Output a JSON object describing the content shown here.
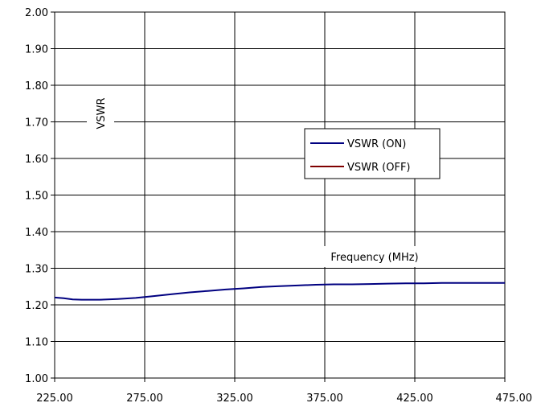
{
  "chart_data": {
    "type": "line",
    "title": "",
    "xlabel": "Frequency (MHz)",
    "ylabel": "VSWR",
    "xlim": [
      225,
      475
    ],
    "ylim": [
      1.0,
      2.0
    ],
    "x_ticks": [
      "225.00",
      "275.00",
      "325.00",
      "375.00",
      "425.00",
      "475.00"
    ],
    "y_ticks": [
      "1.00",
      "1.10",
      "1.20",
      "1.30",
      "1.40",
      "1.50",
      "1.60",
      "1.70",
      "1.80",
      "1.90",
      "2.00"
    ],
    "grid": true,
    "legend_position": "center-right",
    "series": [
      {
        "name": "VSWR (ON)",
        "color": "#000080",
        "x": [
          225,
          230,
          235,
          240,
          250,
          260,
          270,
          280,
          290,
          300,
          310,
          320,
          330,
          340,
          350,
          360,
          370,
          380,
          390,
          400,
          410,
          420,
          430,
          440,
          450,
          460,
          470,
          475
        ],
        "y": [
          1.22,
          1.218,
          1.215,
          1.214,
          1.214,
          1.216,
          1.219,
          1.224,
          1.229,
          1.234,
          1.238,
          1.242,
          1.245,
          1.249,
          1.251,
          1.253,
          1.255,
          1.256,
          1.256,
          1.257,
          1.258,
          1.259,
          1.259,
          1.26,
          1.26,
          1.26,
          1.26,
          1.26
        ]
      },
      {
        "name": "VSWR (OFF)",
        "color": "#800000",
        "x": [],
        "y": []
      }
    ]
  }
}
